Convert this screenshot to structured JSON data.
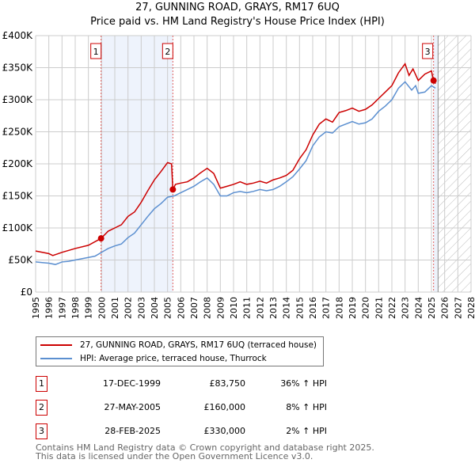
{
  "title": "27, GUNNING ROAD, GRAYS, RM17 6UQ",
  "subtitle": "Price paid vs. HM Land Registry's House Price Index (HPI)",
  "chart_data": {
    "type": "line",
    "title": "27, GUNNING ROAD, GRAYS, RM17 6UQ — Price paid vs. HM Land Registry's House Price Index (HPI)",
    "xlim": [
      1995,
      2028
    ],
    "ylim": [
      0,
      400000
    ],
    "x_ticks": [
      "1995",
      "1996",
      "1997",
      "1998",
      "1999",
      "2000",
      "2001",
      "2002",
      "2003",
      "2004",
      "2005",
      "2006",
      "2007",
      "2008",
      "2009",
      "2010",
      "2011",
      "2012",
      "2013",
      "2014",
      "2015",
      "2016",
      "2017",
      "2018",
      "2019",
      "2020",
      "2021",
      "2022",
      "2023",
      "2024",
      "2025",
      "2026",
      "2027",
      "2028"
    ],
    "y_ticks": [
      {
        "v": 0,
        "l": "£0"
      },
      {
        "v": 50000,
        "l": "£50K"
      },
      {
        "v": 100000,
        "l": "£100K"
      },
      {
        "v": 150000,
        "l": "£150K"
      },
      {
        "v": 200000,
        "l": "£200K"
      },
      {
        "v": 250000,
        "l": "£250K"
      },
      {
        "v": 300000,
        "l": "£300K"
      },
      {
        "v": 350000,
        "l": "£350K"
      },
      {
        "v": 400000,
        "l": "£400K"
      }
    ],
    "grid": true,
    "series": [
      {
        "name": "27, GUNNING ROAD, GRAYS, RM17 6UQ (terraced house)",
        "color": "#cc0000",
        "x": [
          1995,
          1996,
          1996.3,
          1997,
          1998,
          1999,
          1999.96,
          2000.5,
          2001,
          2001.5,
          2002,
          2002.5,
          2003,
          2003.5,
          2004,
          2004.5,
          2005,
          2005.3,
          2005.4,
          2005.6,
          2006,
          2006.5,
          2007,
          2007.5,
          2008,
          2008.5,
          2009,
          2009.5,
          2010,
          2010.5,
          2011,
          2011.5,
          2012,
          2012.5,
          2013,
          2013.5,
          2014,
          2014.5,
          2015,
          2015.5,
          2016,
          2016.5,
          2017,
          2017.5,
          2018,
          2018.5,
          2019,
          2019.5,
          2020,
          2020.5,
          2021,
          2021.5,
          2022,
          2022.5,
          2023,
          2023.3,
          2023.6,
          2024,
          2024.5,
          2025,
          2025.16,
          2025.3
        ],
        "y": [
          64000,
          60000,
          57000,
          62000,
          68000,
          73000,
          83750,
          95000,
          100000,
          105000,
          118000,
          125000,
          140000,
          158000,
          175000,
          188000,
          202000,
          200000,
          160000,
          168000,
          170000,
          172000,
          178000,
          186000,
          193000,
          185000,
          162000,
          165000,
          168000,
          172000,
          168000,
          170000,
          173000,
          170000,
          175000,
          178000,
          182000,
          190000,
          208000,
          222000,
          245000,
          262000,
          270000,
          265000,
          280000,
          283000,
          287000,
          282000,
          285000,
          292000,
          302000,
          312000,
          322000,
          342000,
          356000,
          338000,
          348000,
          330000,
          340000,
          345000,
          330000,
          325000
        ]
      },
      {
        "name": "HPI: Average price, terraced house, Thurrock",
        "color": "#5b8fd0",
        "x": [
          1995,
          1995.5,
          1996,
          1996.5,
          1997,
          1997.5,
          1998,
          1998.5,
          1999,
          1999.5,
          2000,
          2000.5,
          2001,
          2001.5,
          2002,
          2002.5,
          2003,
          2003.5,
          2004,
          2004.5,
          2005,
          2005.5,
          2006,
          2006.5,
          2007,
          2007.5,
          2008,
          2008.5,
          2009,
          2009.5,
          2010,
          2010.5,
          2011,
          2011.5,
          2012,
          2012.5,
          2013,
          2013.5,
          2014,
          2014.5,
          2015,
          2015.5,
          2016,
          2016.5,
          2017,
          2017.5,
          2018,
          2018.5,
          2019,
          2019.5,
          2020,
          2020.5,
          2021,
          2021.5,
          2022,
          2022.5,
          2023,
          2023.5,
          2023.8,
          2024,
          2024.5,
          2025,
          2025.3
        ],
        "y": [
          47000,
          46000,
          45000,
          43000,
          47000,
          48000,
          50000,
          52000,
          54000,
          56000,
          62000,
          68000,
          72000,
          75000,
          85000,
          92000,
          105000,
          118000,
          130000,
          138000,
          148000,
          150000,
          155000,
          160000,
          165000,
          172000,
          178000,
          168000,
          150000,
          150000,
          155000,
          157000,
          155000,
          157000,
          160000,
          158000,
          160000,
          165000,
          172000,
          180000,
          192000,
          205000,
          228000,
          242000,
          250000,
          248000,
          258000,
          262000,
          266000,
          262000,
          264000,
          270000,
          282000,
          290000,
          300000,
          318000,
          328000,
          315000,
          322000,
          310000,
          312000,
          322000,
          318000
        ]
      }
    ],
    "sales": [
      {
        "label": "1",
        "x": 1999.96,
        "y": 83750
      },
      {
        "label": "2",
        "x": 2005.4,
        "y": 160000
      },
      {
        "label": "3",
        "x": 2025.16,
        "y": 330000
      }
    ],
    "forecast_hatch_from": 2025.5
  },
  "legend": {
    "items": [
      "27, GUNNING ROAD, GRAYS, RM17 6UQ (terraced house)",
      "HPI: Average price, terraced house, Thurrock"
    ]
  },
  "table": [
    {
      "num": "1",
      "date": "17-DEC-1999",
      "price": "£83,750",
      "hpi": "36% ↑ HPI"
    },
    {
      "num": "2",
      "date": "27-MAY-2005",
      "price": "£160,000",
      "hpi": "8% ↑ HPI"
    },
    {
      "num": "3",
      "date": "28-FEB-2025",
      "price": "£330,000",
      "hpi": "2% ↑ HPI"
    }
  ],
  "footer": [
    "Contains HM Land Registry data © Crown copyright and database right 2025.",
    "This data is licensed under the Open Government Licence v3.0."
  ]
}
